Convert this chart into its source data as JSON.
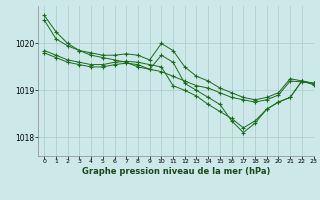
{
  "title": "Graphe pression niveau de la mer (hPa)",
  "bg_color": "#cce8e8",
  "grid_color": "#aacccc",
  "line_color": "#1a6b1a",
  "marker": "+",
  "xlim": [
    -0.5,
    23
  ],
  "ylim": [
    1017.6,
    1020.8
  ],
  "yticks": [
    1018,
    1019,
    1020
  ],
  "xticks": [
    0,
    1,
    2,
    3,
    4,
    5,
    6,
    7,
    8,
    9,
    10,
    11,
    12,
    13,
    14,
    15,
    16,
    17,
    18,
    19,
    20,
    21,
    22,
    23
  ],
  "series": [
    [
      1020.6,
      1020.25,
      1020.0,
      1019.85,
      1019.75,
      1019.7,
      1019.65,
      1019.6,
      1019.5,
      1019.45,
      1019.4,
      1019.3,
      1019.2,
      1019.1,
      1019.05,
      1018.95,
      1018.85,
      1018.8,
      1018.75,
      1018.8,
      1018.9,
      1019.2,
      1019.18,
      1019.15
    ],
    [
      1020.5,
      1020.1,
      1019.95,
      1019.85,
      1019.8,
      1019.75,
      1019.75,
      1019.78,
      1019.75,
      1019.65,
      1020.0,
      1019.85,
      1019.5,
      1019.3,
      1019.2,
      1019.05,
      1018.95,
      1018.85,
      1018.8,
      1018.85,
      1018.95,
      1019.25,
      1019.2,
      1019.15
    ],
    [
      1019.85,
      1019.75,
      1019.65,
      1019.6,
      1019.55,
      1019.55,
      1019.6,
      1019.62,
      1019.6,
      1019.55,
      1019.5,
      1019.1,
      1019.0,
      1018.88,
      1018.7,
      1018.55,
      1018.4,
      1018.2,
      1018.35,
      1018.6,
      1018.75,
      1018.85,
      1019.2,
      1019.15
    ],
    [
      1019.8,
      1019.7,
      1019.6,
      1019.55,
      1019.5,
      1019.5,
      1019.55,
      1019.58,
      1019.55,
      1019.45,
      1019.75,
      1019.6,
      1019.15,
      1019.0,
      1018.85,
      1018.7,
      1018.35,
      1018.1,
      1018.3,
      1018.6,
      1018.75,
      1018.85,
      1019.2,
      1019.12
    ]
  ]
}
